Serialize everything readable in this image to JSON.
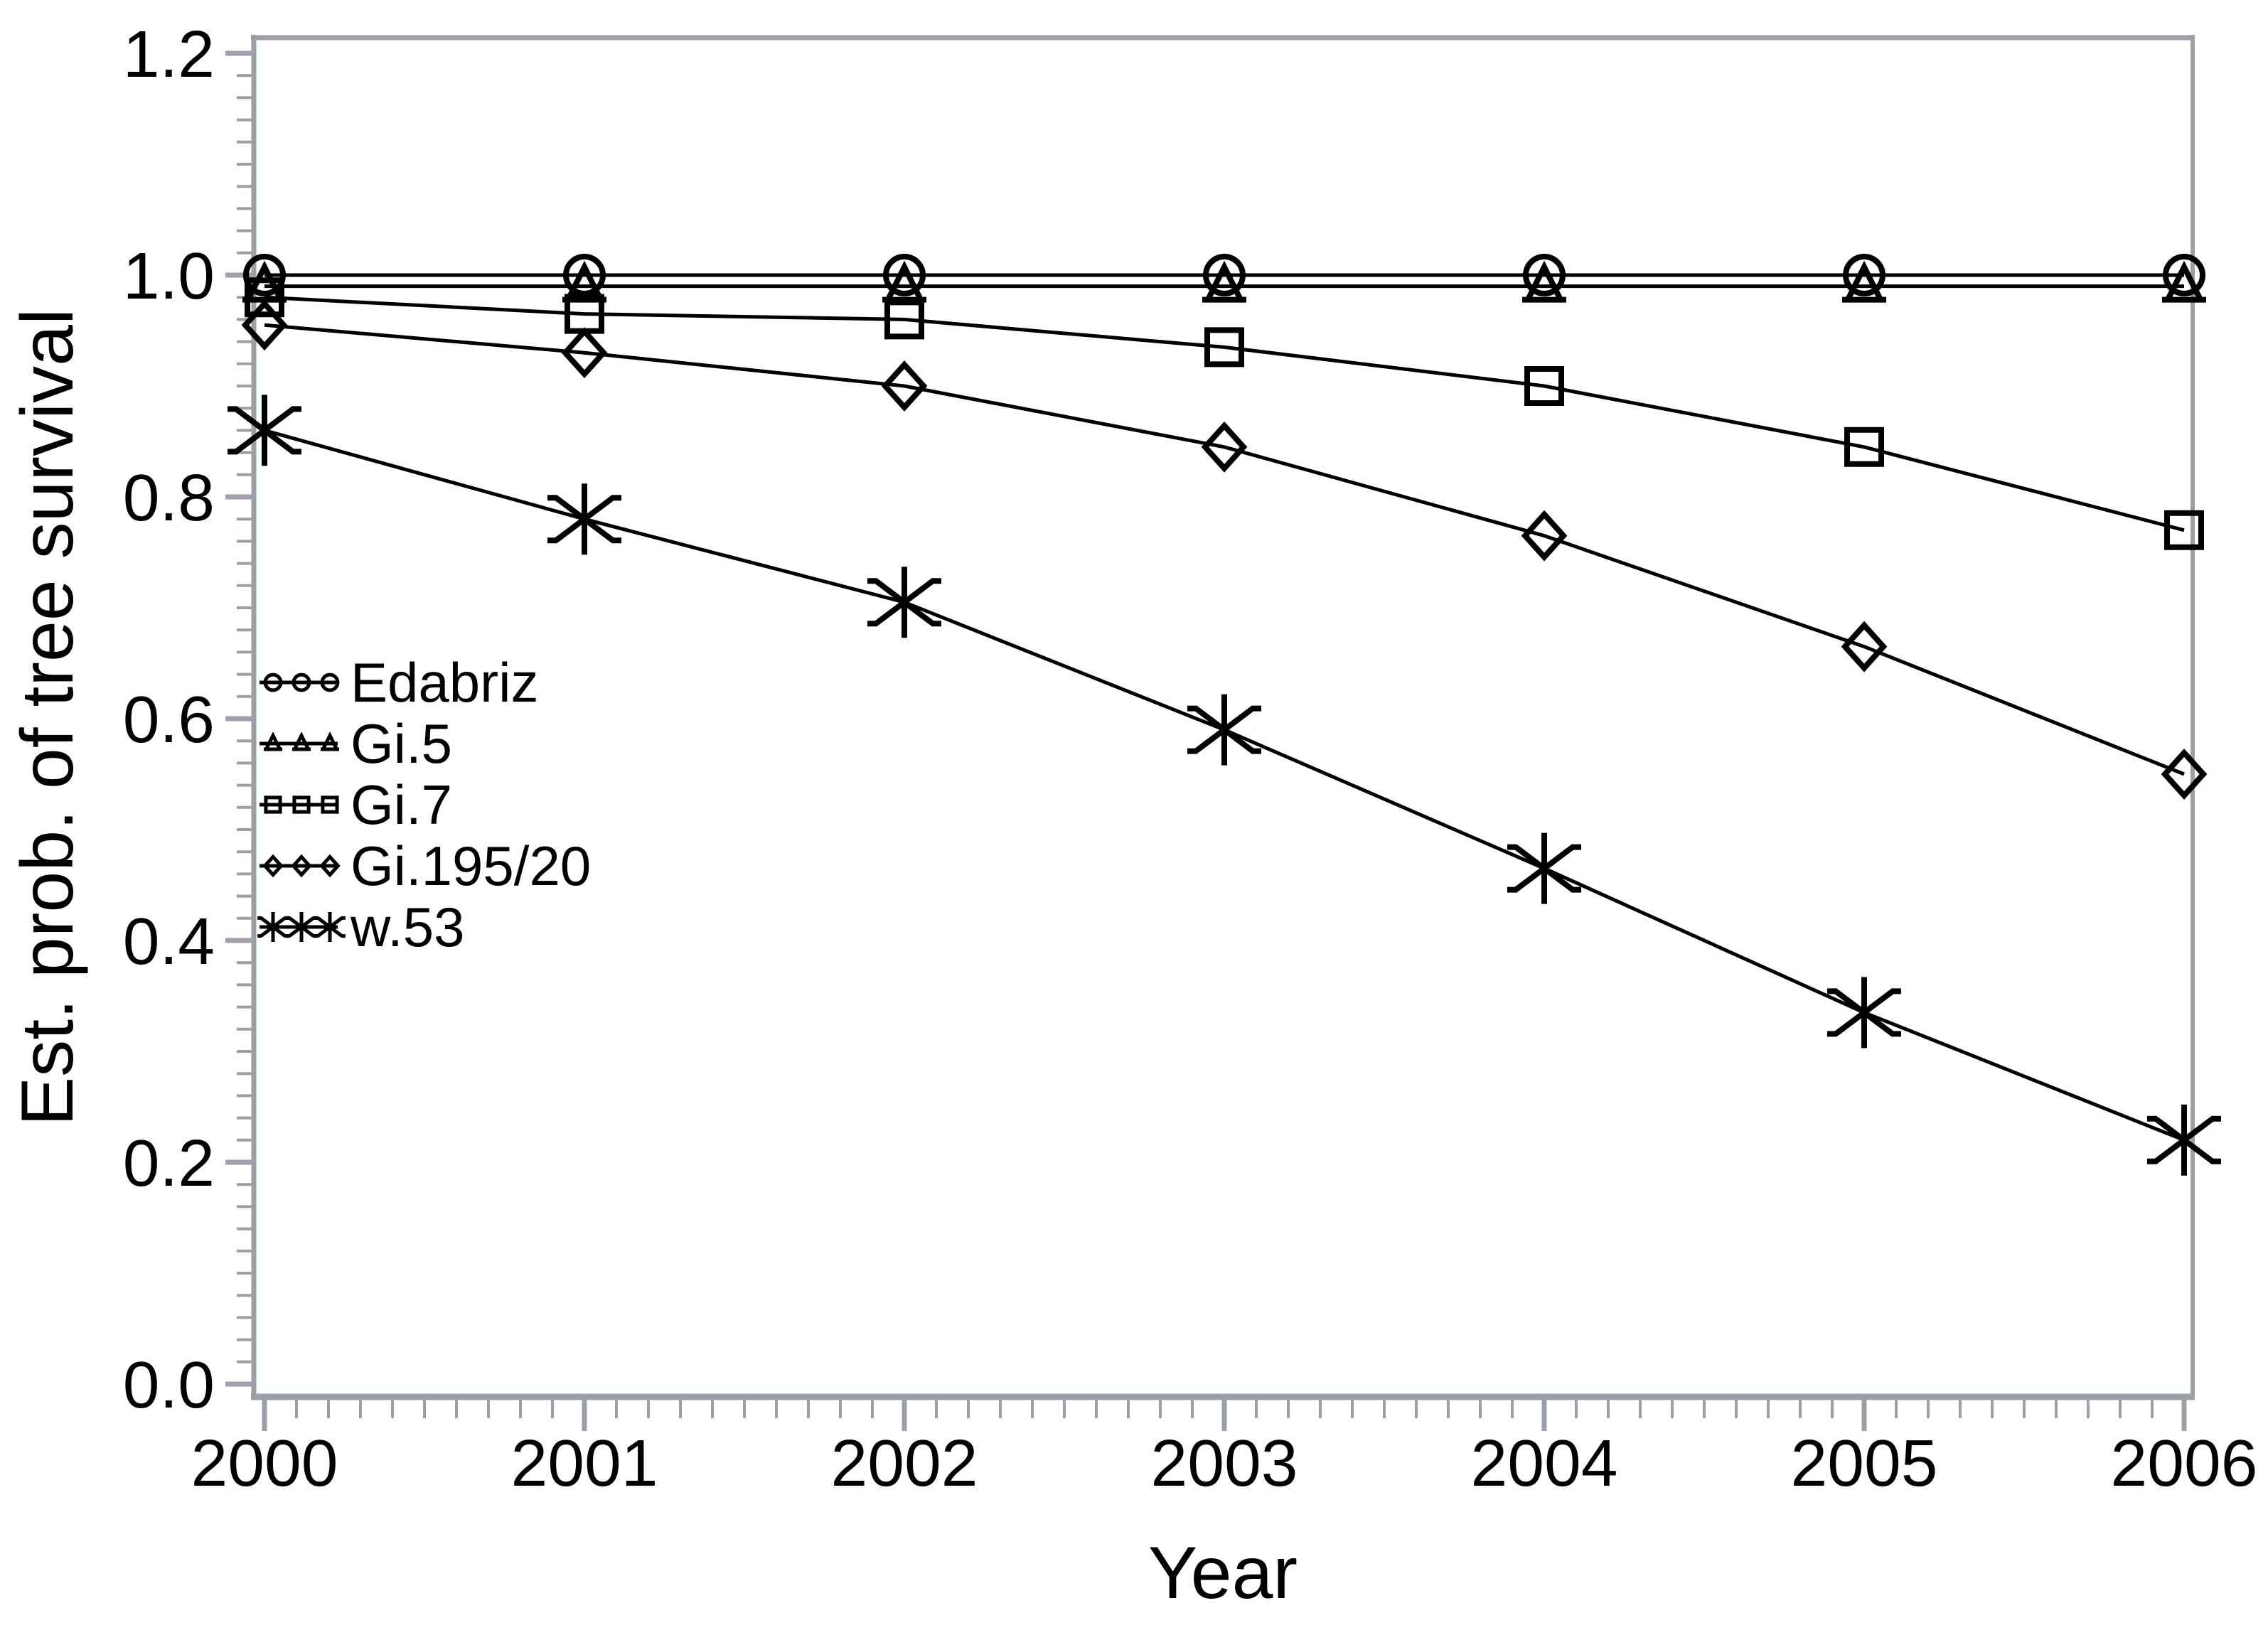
{
  "chart_data": {
    "type": "line",
    "title": "",
    "xlabel": "Year",
    "ylabel": "Est. prob. of tree survival",
    "x": [
      2000,
      2001,
      2002,
      2003,
      2004,
      2005,
      2006
    ],
    "x_tick_labels": [
      "2000",
      "2001",
      "2002",
      "2003",
      "2004",
      "2005",
      "2006"
    ],
    "y_tick_labels": [
      "0.0",
      "0.2",
      "0.4",
      "0.6",
      "0.8",
      "1.0",
      "1.2"
    ],
    "y_tick_values": [
      0.0,
      0.2,
      0.4,
      0.6,
      0.8,
      1.0,
      1.2
    ],
    "xlim": [
      2000,
      2006
    ],
    "ylim": [
      0.0,
      1.2
    ],
    "x_minor_step": 0.1,
    "y_minor_step": 0.02,
    "grid": false,
    "legend_position": "left-middle",
    "axis_color": "#9aA0a6",
    "data_color": "#000000",
    "series": [
      {
        "name": "Edabriz",
        "marker": "circle",
        "values": [
          1.0,
          1.0,
          1.0,
          1.0,
          1.0,
          1.0,
          1.0
        ]
      },
      {
        "name": "Gi.5",
        "marker": "triangle",
        "values": [
          0.99,
          0.99,
          0.99,
          0.99,
          0.99,
          0.99,
          0.99
        ]
      },
      {
        "name": "Gi.7",
        "marker": "square",
        "values": [
          0.98,
          0.965,
          0.96,
          0.935,
          0.9,
          0.845,
          0.77
        ]
      },
      {
        "name": "Gi.195/20",
        "marker": "diamond",
        "values": [
          0.955,
          0.93,
          0.9,
          0.845,
          0.765,
          0.665,
          0.55
        ]
      },
      {
        "name": "w.53",
        "marker": "asterisk",
        "values": [
          0.86,
          0.78,
          0.705,
          0.59,
          0.465,
          0.335,
          0.22
        ]
      }
    ]
  }
}
